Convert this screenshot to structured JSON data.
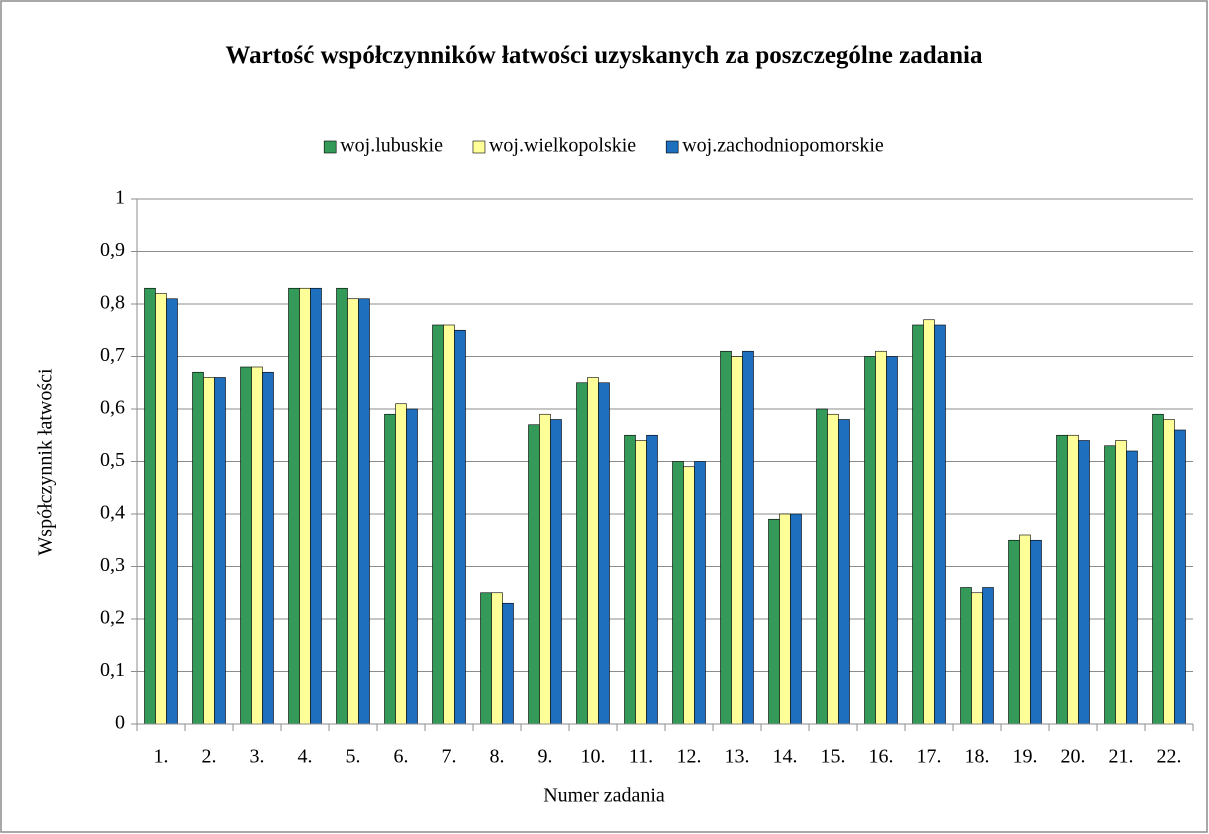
{
  "chart_data": {
    "type": "bar",
    "title": "Wartość współczynników łatwości uzyskanych za poszczególne zadania",
    "x_label": "Numer zadania",
    "y_label": "Współczynnik łatwości",
    "categories": [
      "1.",
      "2.",
      "3.",
      "4.",
      "5.",
      "6.",
      "7.",
      "8.",
      "9.",
      "10.",
      "11.",
      "12.",
      "13.",
      "14.",
      "15.",
      "16.",
      "17.",
      "18.",
      "19.",
      "20.",
      "21.",
      "22."
    ],
    "series": [
      {
        "name": "woj.lubuskie",
        "color": "#339a5a",
        "values": [
          0.83,
          0.67,
          0.68,
          0.83,
          0.83,
          0.59,
          0.76,
          0.25,
          0.57,
          0.65,
          0.55,
          0.5,
          0.71,
          0.39,
          0.6,
          0.7,
          0.76,
          0.26,
          0.35,
          0.55,
          0.53,
          0.59
        ]
      },
      {
        "name": "woj.wielkopolskie",
        "color": "#ffff99",
        "values": [
          0.82,
          0.66,
          0.68,
          0.83,
          0.81,
          0.61,
          0.76,
          0.25,
          0.59,
          0.66,
          0.54,
          0.49,
          0.7,
          0.4,
          0.59,
          0.71,
          0.77,
          0.25,
          0.36,
          0.55,
          0.54,
          0.58
        ]
      },
      {
        "name": "woj.zachodniopomorskie",
        "color": "#1f6fbf",
        "values": [
          0.81,
          0.66,
          0.67,
          0.83,
          0.81,
          0.6,
          0.75,
          0.23,
          0.58,
          0.65,
          0.55,
          0.5,
          0.71,
          0.4,
          0.58,
          0.7,
          0.76,
          0.26,
          0.35,
          0.54,
          0.52,
          0.56
        ]
      }
    ],
    "ylim": [
      0,
      1
    ],
    "yticks": [
      0,
      {
        "value": 0.1,
        "label": "0,1"
      },
      {
        "value": 0.2,
        "label": "0,2"
      },
      {
        "value": 0.3,
        "label": "0,3"
      },
      {
        "value": 0.4,
        "label": "0,4"
      },
      {
        "value": 0.5,
        "label": "0,5"
      },
      {
        "value": 0.6,
        "label": "0,6"
      },
      {
        "value": 0.7,
        "label": "0,7"
      },
      {
        "value": 0.8,
        "label": "0,8"
      },
      {
        "value": 0.9,
        "label": "0,9"
      },
      1
    ],
    "grid": true,
    "legend": "top"
  }
}
